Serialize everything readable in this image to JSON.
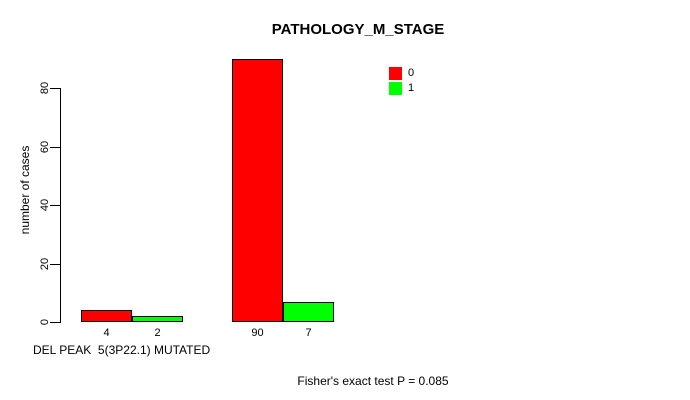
{
  "chart_data": {
    "type": "bar",
    "title": "PATHOLOGY_M_STAGE",
    "xlabel": "DEL PEAK  5(3P22.1) MUTATED",
    "ylabel": "number of cases",
    "annotation": "Fisher's exact test P = 0.085",
    "series": [
      {
        "name": "0",
        "color": "#ff0000",
        "values": [
          4,
          90
        ]
      },
      {
        "name": "1",
        "color": "#00ff00",
        "values": [
          2,
          7
        ]
      }
    ],
    "bar_value_labels": [
      [
        "4",
        "90"
      ],
      [
        "2",
        "7"
      ]
    ],
    "yticks": [
      0,
      20,
      40,
      60,
      80
    ],
    "ylim": [
      0,
      90
    ],
    "grid": false,
    "legend_position": "top-right",
    "legend_entries": [
      "0",
      "1"
    ],
    "colors": {
      "series0": "#ff0000",
      "series1": "#00ff00",
      "axis": "#000000",
      "background": "#ffffff"
    }
  }
}
